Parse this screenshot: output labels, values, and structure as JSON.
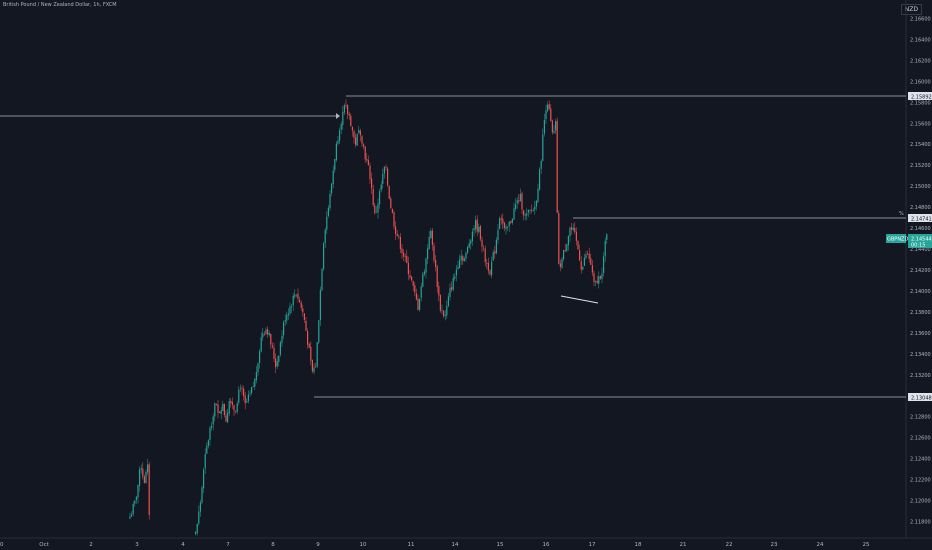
{
  "header": {
    "title": "British Pound / New Zealand Dollar, 1h, FXCM",
    "currency": "NZD"
  },
  "colors": {
    "up": "#26a69a",
    "down": "#ef5350",
    "background": "#131722",
    "line": "#b2b5be"
  },
  "chart_data": {
    "type": "candlestick",
    "title": "British Pound / New Zealand Dollar, 1h, FXCM",
    "ylim": [
      2.117,
      2.167
    ],
    "y_ticks": [
      "2.16600",
      "2.16400",
      "2.16200",
      "2.16000",
      "2.15800",
      "2.15600",
      "2.15400",
      "2.15200",
      "2.15000",
      "2.14800",
      "2.14600",
      "2.14400",
      "2.14200",
      "2.14000",
      "2.13800",
      "2.13600",
      "2.13400",
      "2.13200",
      "2.13000",
      "2.12800",
      "2.12600",
      "2.12400",
      "2.12200",
      "2.12000",
      "2.11800"
    ],
    "x_ticks": [
      "0",
      "Oct",
      "2",
      "3",
      "4",
      "7",
      "8",
      "9",
      "10",
      "11",
      "14",
      "15",
      "16",
      "17",
      "18",
      "21",
      "22",
      "23",
      "24",
      "25"
    ],
    "price_path": [
      [
        130,
        2.1185
      ],
      [
        135,
        2.1198
      ],
      [
        138,
        2.1215
      ],
      [
        141,
        2.1235
      ],
      [
        144,
        2.1218
      ],
      [
        148,
        2.1232
      ],
      [
        150,
        2.116
      ],
      [
        195,
        2.1165
      ],
      [
        200,
        2.1195
      ],
      [
        205,
        2.124
      ],
      [
        210,
        2.1268
      ],
      [
        215,
        2.1293
      ],
      [
        218,
        2.1282
      ],
      [
        222,
        2.1292
      ],
      [
        226,
        2.1278
      ],
      [
        230,
        2.13
      ],
      [
        235,
        2.1285
      ],
      [
        240,
        2.1312
      ],
      [
        245,
        2.129
      ],
      [
        250,
        2.13
      ],
      [
        255,
        2.1315
      ],
      [
        258,
        2.1335
      ],
      [
        262,
        2.136
      ],
      [
        267,
        2.1365
      ],
      [
        272,
        2.1345
      ],
      [
        276,
        2.1328
      ],
      [
        280,
        2.1348
      ],
      [
        285,
        2.1375
      ],
      [
        290,
        2.1385
      ],
      [
        296,
        2.14
      ],
      [
        300,
        2.1388
      ],
      [
        304,
        2.1375
      ],
      [
        308,
        2.135
      ],
      [
        312,
        2.1322
      ],
      [
        316,
        2.133
      ],
      [
        320,
        2.1395
      ],
      [
        324,
        2.1455
      ],
      [
        330,
        2.149
      ],
      [
        335,
        2.153
      ],
      [
        340,
        2.156
      ],
      [
        345,
        2.1575
      ],
      [
        350,
        2.1565
      ],
      [
        355,
        2.154
      ],
      [
        360,
        2.1555
      ],
      [
        365,
        2.153
      ],
      [
        370,
        2.151
      ],
      [
        375,
        2.147
      ],
      [
        380,
        2.1495
      ],
      [
        385,
        2.152
      ],
      [
        390,
        2.1485
      ],
      [
        395,
        2.146
      ],
      [
        400,
        2.1445
      ],
      [
        405,
        2.143
      ],
      [
        410,
        2.1415
      ],
      [
        415,
        2.1395
      ],
      [
        418,
        2.1385
      ],
      [
        422,
        2.141
      ],
      [
        426,
        2.143
      ],
      [
        430,
        2.146
      ],
      [
        435,
        2.1425
      ],
      [
        440,
        2.1385
      ],
      [
        445,
        2.1375
      ],
      [
        450,
        2.14
      ],
      [
        455,
        2.1415
      ],
      [
        460,
        2.1435
      ],
      [
        465,
        2.143
      ],
      [
        470,
        2.145
      ],
      [
        475,
        2.1465
      ],
      [
        480,
        2.1455
      ],
      [
        485,
        2.143
      ],
      [
        490,
        2.142
      ],
      [
        495,
        2.144
      ],
      [
        500,
        2.1475
      ],
      [
        505,
        2.1455
      ],
      [
        510,
        2.1465
      ],
      [
        515,
        2.148
      ],
      [
        520,
        2.149
      ],
      [
        525,
        2.147
      ],
      [
        530,
        2.1475
      ],
      [
        535,
        2.148
      ],
      [
        540,
        2.1515
      ],
      [
        544,
        2.156
      ],
      [
        547,
        2.1585
      ],
      [
        550,
        2.1565
      ],
      [
        553,
        2.1545
      ],
      [
        556,
        2.156
      ],
      [
        558,
        2.142
      ],
      [
        562,
        2.143
      ],
      [
        566,
        2.1445
      ],
      [
        570,
        2.146
      ],
      [
        574,
        2.1455
      ],
      [
        578,
        2.144
      ],
      [
        582,
        2.142
      ],
      [
        586,
        2.1435
      ],
      [
        590,
        2.143
      ],
      [
        594,
        2.1405
      ],
      [
        598,
        2.141
      ],
      [
        602,
        2.142
      ],
      [
        606,
        2.145
      ],
      [
        608,
        2.1455
      ]
    ],
    "levels": [
      {
        "label": "2.15892",
        "value": 2.15892
      },
      {
        "label": "2.14741",
        "value": 2.14741
      },
      {
        "label": "2.13048",
        "value": 2.13048
      }
    ],
    "current_price": {
      "symbol": "GBPNZD",
      "label": "2.14544",
      "countdown": "00:15",
      "value": 2.14544
    }
  }
}
